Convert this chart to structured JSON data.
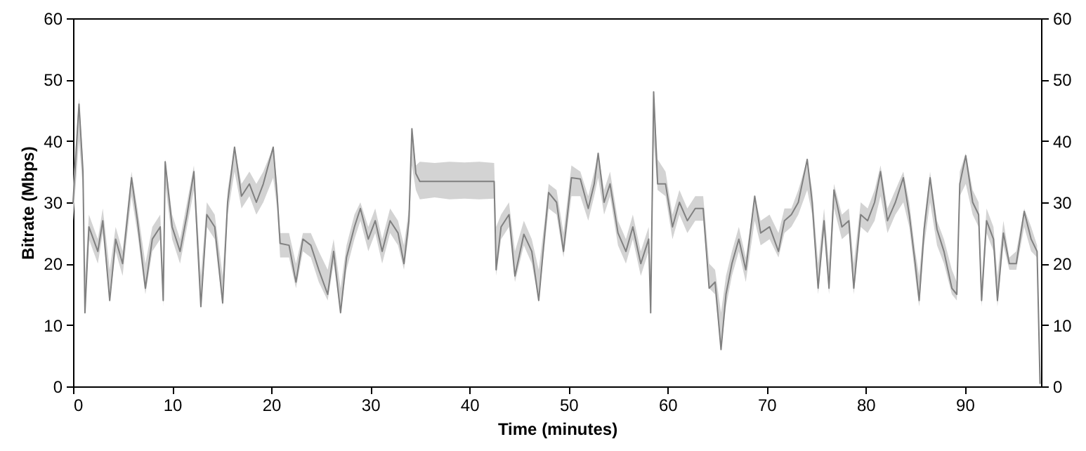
{
  "chart_data": {
    "type": "line",
    "xlabel": "Time (minutes)",
    "ylabel": "Bitrate (Mbps)",
    "xlim": [
      0,
      97.7
    ],
    "ylim": [
      0,
      60
    ],
    "y2lim": [
      0,
      60
    ],
    "xticks": [
      0,
      10,
      20,
      30,
      40,
      50,
      60,
      70,
      80,
      90
    ],
    "yticks": [
      0,
      10,
      20,
      30,
      40,
      50,
      60
    ],
    "y2ticks": [
      0,
      10,
      20,
      30,
      40,
      50,
      60
    ],
    "grid": false,
    "series": [
      {
        "color": "#808080",
        "x": [
          0,
          0.6,
          1.0,
          1.2,
          1.6,
          2.5,
          3.0,
          3.7,
          4.3,
          5.0,
          5.9,
          6.5,
          7.3,
          8.0,
          8.8,
          9.1,
          9.3,
          10.0,
          10.8,
          11.5,
          12.2,
          12.9,
          13.5,
          14.3,
          15.1,
          15.6,
          16.3,
          17.0,
          17.8,
          18.5,
          19.2,
          20.2,
          20.6,
          20.9,
          21.8,
          22.5,
          23.2,
          24.0,
          24.8,
          25.7,
          26.3,
          27.0,
          27.6,
          28.4,
          29.0,
          29.8,
          30.5,
          31.2,
          32.0,
          32.8,
          33.4,
          33.9,
          34.2,
          34.6,
          35.0,
          36.5,
          38.0,
          39.5,
          41.0,
          42.5,
          42.7,
          43.2,
          44.0,
          44.6,
          45.5,
          46.3,
          47.0,
          47.6,
          48.0,
          48.8,
          49.5,
          50.3,
          51.2,
          52.0,
          52.6,
          53.0,
          53.6,
          54.2,
          55.0,
          55.8,
          56.5,
          57.3,
          58.1,
          58.3,
          58.6,
          59.0,
          59.8,
          60.5,
          61.2,
          62.0,
          62.8,
          63.6,
          64.2,
          64.8,
          65.4,
          65.9,
          66.5,
          67.2,
          67.9,
          68.8,
          69.4,
          70.3,
          71.2,
          71.8,
          72.5,
          73.2,
          74.1,
          74.6,
          75.2,
          75.8,
          76.3,
          76.8,
          77.6,
          78.3,
          78.8,
          79.5,
          80.2,
          80.9,
          81.5,
          82.2,
          83.0,
          83.8,
          84.4,
          85.0,
          85.4,
          85.9,
          86.5,
          87.2,
          87.9,
          88.7,
          89.2,
          89.5,
          90.1,
          90.8,
          91.4,
          91.7,
          92.2,
          92.9,
          93.3,
          93.9,
          94.5,
          95.2,
          96.0,
          96.7,
          97.3,
          97.6
        ],
        "values": [
          30,
          46,
          35,
          12,
          26,
          22,
          27,
          14,
          24,
          20,
          34,
          27,
          16,
          24,
          26,
          14,
          36.6,
          26,
          22,
          28,
          35,
          13,
          28,
          26,
          13.6,
          30,
          39,
          31,
          33,
          30,
          33,
          39,
          31,
          23.3,
          23,
          17,
          24,
          23,
          19,
          15,
          22,
          12,
          21,
          26,
          29,
          24,
          27,
          22,
          27,
          25,
          20,
          27,
          42,
          34.7,
          33.4,
          33.4,
          33.4,
          33.4,
          33.4,
          33.4,
          19,
          26,
          28,
          18,
          24.8,
          22,
          14,
          24.8,
          31.6,
          30,
          22,
          34,
          33.8,
          29,
          33,
          38,
          30,
          33,
          25,
          22,
          26,
          20,
          24,
          12,
          48,
          33,
          33,
          26,
          30,
          27,
          29,
          29,
          16,
          17,
          6,
          15,
          20,
          24,
          19,
          31,
          25,
          26,
          22,
          27,
          28,
          30,
          37,
          30,
          16,
          27,
          16,
          32,
          26,
          27,
          16,
          28,
          27,
          30,
          35,
          27,
          30,
          34,
          28,
          20,
          14,
          25.6,
          34,
          25.6,
          22,
          16,
          15,
          33,
          37.6,
          30,
          28,
          14,
          27,
          24,
          14,
          25,
          20,
          20,
          28.5,
          24,
          22,
          0.5
        ],
        "lower": [
          27,
          40,
          32,
          12,
          24,
          20,
          25,
          14,
          22,
          18,
          31,
          25,
          15,
          22,
          24,
          13,
          33,
          24,
          20,
          26,
          32,
          13,
          26,
          24,
          13,
          28,
          35,
          29,
          31,
          28,
          30,
          34,
          29,
          21,
          21,
          16,
          22,
          21,
          17,
          14,
          20,
          12,
          19,
          24,
          27,
          22,
          25,
          20,
          25,
          23,
          19,
          25,
          36,
          32,
          30.5,
          30.8,
          30.5,
          30.6,
          30.5,
          30.6,
          18,
          24,
          26,
          17,
          23,
          20,
          14,
          23,
          29,
          28,
          21,
          31,
          31,
          27,
          31,
          34,
          28,
          31,
          23,
          20,
          24,
          18,
          22,
          12,
          40,
          32,
          31,
          24,
          28,
          25,
          27,
          27,
          16,
          15,
          6,
          13,
          18,
          22,
          17,
          27,
          23,
          24,
          21,
          25,
          26,
          28,
          32,
          28,
          15,
          25,
          15,
          29,
          24,
          25,
          15,
          26,
          25,
          27,
          31,
          25,
          28,
          30,
          26,
          18,
          13,
          23,
          30,
          23,
          20,
          15,
          14,
          31,
          33,
          28,
          26,
          13,
          25,
          22,
          13,
          23,
          19,
          19,
          26,
          22,
          21,
          0
        ],
        "upper": [
          33,
          47,
          37,
          18,
          28,
          24,
          29,
          19,
          26,
          22,
          35,
          29,
          20,
          26,
          28,
          18,
          37,
          28,
          24,
          30,
          36,
          18,
          30,
          28,
          18,
          32,
          39,
          33,
          35,
          33,
          35,
          39,
          33,
          25,
          25,
          20,
          25,
          25,
          22,
          19,
          24,
          16,
          23,
          28,
          30,
          26,
          29,
          24,
          29,
          27,
          23,
          29,
          42,
          36,
          36.6,
          36.4,
          36.6,
          36.5,
          36.6,
          36.4,
          26,
          28,
          30,
          22,
          27,
          24,
          19,
          27,
          33,
          32,
          25,
          36,
          35,
          31,
          35,
          38,
          32,
          35,
          27,
          24,
          28,
          22,
          26,
          17,
          48,
          37,
          35,
          28,
          32,
          29,
          31,
          31,
          20,
          19,
          12,
          18,
          22,
          26,
          21,
          31,
          27,
          28,
          25,
          29,
          29,
          32,
          37,
          32,
          20,
          29,
          20,
          33,
          28,
          29,
          20,
          30,
          29,
          32,
          36,
          29,
          32,
          35,
          30,
          22,
          18,
          27,
          35,
          27,
          24,
          19,
          17,
          35,
          38,
          32,
          30,
          17,
          29,
          26,
          18,
          27,
          21,
          22,
          29,
          26,
          23,
          2
        ]
      }
    ]
  }
}
